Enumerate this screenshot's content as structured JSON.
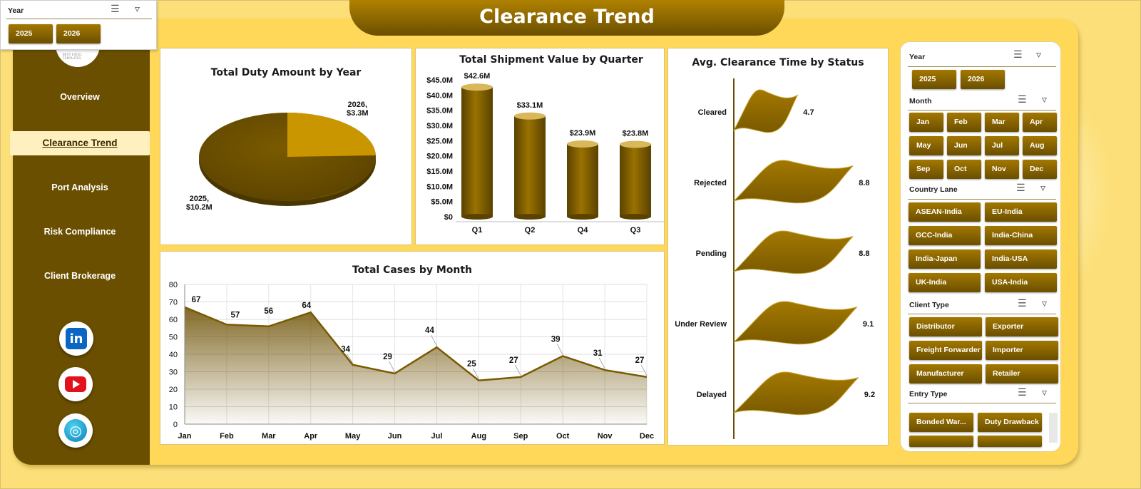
{
  "header": {
    "title": "Clearance Trend"
  },
  "colors": {
    "brand_dark": "#6b4f00",
    "brand_gold": "#a37800",
    "panel": "#ffd85a",
    "background": "#fcdf78",
    "pie_light": "#c99600"
  },
  "popup_slicer": {
    "header": "Year",
    "buttons": [
      "2025",
      "2026"
    ],
    "icons": [
      "multi-select-icon",
      "clear-filter-icon"
    ]
  },
  "sidebar": {
    "logo_text": "BEST EXCEL TEMPLATES",
    "items": [
      {
        "label": "Overview",
        "active": false
      },
      {
        "label": "Clearance Trend",
        "active": true
      },
      {
        "label": "Port Analysis",
        "active": false
      },
      {
        "label": "Risk Compliance",
        "active": false
      },
      {
        "label": "Client Brokerage",
        "active": false
      }
    ],
    "social": {
      "linkedin": "in",
      "youtube": "youtube-icon",
      "web": "globe-icon"
    }
  },
  "charts": {
    "pie": {
      "title": "Total Duty Amount by Year",
      "label_2025": [
        "2025,",
        "$10.2M"
      ],
      "label_2026": [
        "2026,",
        "$3.3M"
      ]
    },
    "bar": {
      "title": "Total Shipment Value by Quarter",
      "value_labels": [
        "$42.6M",
        "$33.1M",
        "$23.9M",
        "$23.8M"
      ],
      "ticks": [
        "$45.0M",
        "$40.0M",
        "$35.0M",
        "$30.0M",
        "$25.0M",
        "$20.0M",
        "$15.0M",
        "$10.0M",
        "$5.0M",
        "$0"
      ]
    },
    "line": {
      "title": "Total Cases by Month",
      "ticks": [
        "80",
        "70",
        "60",
        "50",
        "40",
        "30",
        "20",
        "10",
        "0"
      ]
    },
    "status": {
      "title": "Avg. Clearance Time by Status",
      "value_labels": [
        "4.7",
        "8.8",
        "8.8",
        "9.1",
        "9.2"
      ]
    }
  },
  "chart_data": [
    {
      "type": "pie",
      "title": "Total Duty Amount by Year",
      "categories": [
        "2025",
        "2026"
      ],
      "values": [
        10.2,
        3.3
      ],
      "unit": "$M"
    },
    {
      "type": "bar",
      "title": "Total Shipment Value by Quarter",
      "categories": [
        "Q1",
        "Q2",
        "Q4",
        "Q3"
      ],
      "values": [
        42.6,
        33.1,
        23.9,
        23.8
      ],
      "ylim": [
        0,
        45
      ]
    },
    {
      "type": "area",
      "title": "Total Cases by Month",
      "categories": [
        "Jan",
        "Feb",
        "Mar",
        "Apr",
        "May",
        "Jun",
        "Jul",
        "Aug",
        "Sep",
        "Oct",
        "Nov",
        "Dec"
      ],
      "values": [
        67,
        57,
        56,
        64,
        34,
        29,
        44,
        25,
        27,
        39,
        31,
        27
      ],
      "ylim": [
        0,
        80
      ],
      "grid": true
    },
    {
      "type": "bar",
      "title": "Avg. Clearance Time by Status",
      "categories": [
        "Cleared",
        "Rejected",
        "Pending",
        "Under Review",
        "Delayed"
      ],
      "values": [
        4.7,
        8.8,
        8.8,
        9.1,
        9.2
      ]
    }
  ],
  "slicers": {
    "year": {
      "header": "Year",
      "buttons": [
        "2025",
        "2026"
      ]
    },
    "month": {
      "header": "Month",
      "buttons": [
        "Jan",
        "Feb",
        "Mar",
        "Apr",
        "May",
        "Jun",
        "Jul",
        "Aug",
        "Sep",
        "Oct",
        "Nov",
        "Dec"
      ]
    },
    "country_lane": {
      "header": "Country Lane",
      "buttons": [
        "ASEAN-India",
        "EU-India",
        "GCC-India",
        "India-China",
        "India-Japan",
        "India-USA",
        "UK-India",
        "USA-India"
      ]
    },
    "client_type": {
      "header": "Client Type",
      "buttons": [
        "Distributor",
        "Exporter",
        "Freight Forwarder",
        "Importer",
        "Manufacturer",
        "Retailer"
      ]
    },
    "entry_type": {
      "header": "Entry Type",
      "buttons": [
        "Bonded War...",
        "Duty Drawback"
      ]
    }
  }
}
